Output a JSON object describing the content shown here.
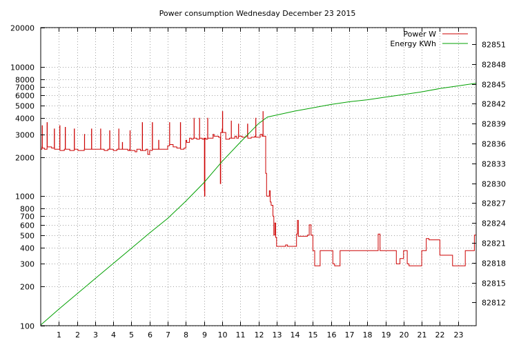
{
  "chart_data": {
    "type": "line",
    "title": "Power consumption Wednesday December 23 2015",
    "xlabel": "",
    "ylabel": "",
    "y2label": "",
    "xlim": [
      0,
      24
    ],
    "ylim": [
      100,
      20000
    ],
    "yscale": "log",
    "y2lim": [
      82808.5,
      82853.5
    ],
    "x_ticks": [
      1,
      2,
      3,
      4,
      5,
      6,
      7,
      8,
      9,
      10,
      11,
      12,
      13,
      14,
      15,
      16,
      17,
      18,
      19,
      20,
      21,
      22,
      23
    ],
    "y_ticks": [
      100,
      200,
      300,
      400,
      500,
      600,
      700,
      800,
      1000,
      2000,
      3000,
      4000,
      5000,
      6000,
      7000,
      8000,
      10000,
      20000
    ],
    "y2_ticks": [
      82812,
      82815,
      82818,
      82821,
      82824,
      82827,
      82830,
      82833,
      82836,
      82839,
      82842,
      82845,
      82848,
      82851
    ],
    "grid": true,
    "legend_position": "top-right",
    "series": [
      {
        "name": "Power W",
        "axis": "y",
        "color": "#cc0000",
        "points": [
          [
            0,
            2300
          ],
          [
            0.07,
            2400
          ],
          [
            0.08,
            3500
          ],
          [
            0.09,
            2350
          ],
          [
            0.2,
            2300
          ],
          [
            0.3,
            2300
          ],
          [
            0.35,
            3700
          ],
          [
            0.36,
            2400
          ],
          [
            0.6,
            2350
          ],
          [
            0.75,
            3300
          ],
          [
            0.76,
            2300
          ],
          [
            1.0,
            2300
          ],
          [
            1.05,
            3500
          ],
          [
            1.06,
            2250
          ],
          [
            1.3,
            2300
          ],
          [
            1.35,
            3400
          ],
          [
            1.36,
            2300
          ],
          [
            1.6,
            2250
          ],
          [
            1.8,
            2250
          ],
          [
            1.85,
            3300
          ],
          [
            1.86,
            2300
          ],
          [
            2.0,
            2300
          ],
          [
            2.05,
            2250
          ],
          [
            2.4,
            2300
          ],
          [
            2.41,
            3000
          ],
          [
            2.42,
            2300
          ],
          [
            2.7,
            2300
          ],
          [
            2.8,
            3300
          ],
          [
            2.81,
            2300
          ],
          [
            3.0,
            2300
          ],
          [
            3.2,
            2300
          ],
          [
            3.3,
            3300
          ],
          [
            3.31,
            2300
          ],
          [
            3.5,
            2250
          ],
          [
            3.7,
            2300
          ],
          [
            3.8,
            3200
          ],
          [
            3.81,
            2300
          ],
          [
            4.0,
            2250
          ],
          [
            4.2,
            2300
          ],
          [
            4.3,
            3300
          ],
          [
            4.31,
            2300
          ],
          [
            4.5,
            2600
          ],
          [
            4.51,
            2300
          ],
          [
            4.8,
            2250
          ],
          [
            4.9,
            2300
          ],
          [
            4.92,
            3200
          ],
          [
            4.93,
            2250
          ],
          [
            5.2,
            2200
          ],
          [
            5.3,
            2300
          ],
          [
            5.5,
            2250
          ],
          [
            5.6,
            3700
          ],
          [
            5.61,
            2250
          ],
          [
            5.8,
            2300
          ],
          [
            5.9,
            2100
          ],
          [
            6.0,
            2250
          ],
          [
            6.1,
            2250
          ],
          [
            6.15,
            3700
          ],
          [
            6.16,
            2300
          ],
          [
            6.4,
            2300
          ],
          [
            6.5,
            2700
          ],
          [
            6.51,
            2300
          ],
          [
            6.7,
            2300
          ],
          [
            6.9,
            2300
          ],
          [
            7.0,
            2450
          ],
          [
            7.1,
            3700
          ],
          [
            7.11,
            2500
          ],
          [
            7.3,
            2400
          ],
          [
            7.5,
            2350
          ],
          [
            7.7,
            3700
          ],
          [
            7.71,
            2300
          ],
          [
            7.9,
            2350
          ],
          [
            8.0,
            2700
          ],
          [
            8.05,
            2600
          ],
          [
            8.2,
            2800
          ],
          [
            8.3,
            2750
          ],
          [
            8.4,
            2800
          ],
          [
            8.45,
            4000
          ],
          [
            8.46,
            2800
          ],
          [
            8.6,
            2750
          ],
          [
            8.75,
            4000
          ],
          [
            8.76,
            2800
          ],
          [
            8.9,
            2750
          ],
          [
            9.0,
            2800
          ],
          [
            9.02,
            1100
          ],
          [
            9.03,
            1000
          ],
          [
            9.05,
            2800
          ],
          [
            9.1,
            2750
          ],
          [
            9.2,
            4000
          ],
          [
            9.21,
            2800
          ],
          [
            9.5,
            3000
          ],
          [
            9.55,
            2900
          ],
          [
            9.8,
            2850
          ],
          [
            9.9,
            1250
          ],
          [
            9.92,
            3100
          ],
          [
            10.0,
            3300
          ],
          [
            10.02,
            4500
          ],
          [
            10.03,
            3100
          ],
          [
            10.2,
            2750
          ],
          [
            10.4,
            2800
          ],
          [
            10.5,
            3800
          ],
          [
            10.51,
            2800
          ],
          [
            10.7,
            2900
          ],
          [
            10.8,
            2800
          ],
          [
            10.9,
            3600
          ],
          [
            10.91,
            2900
          ],
          [
            11.1,
            2850
          ],
          [
            11.3,
            2900
          ],
          [
            11.4,
            3600
          ],
          [
            11.41,
            2800
          ],
          [
            11.6,
            2850
          ],
          [
            11.8,
            2900
          ],
          [
            11.85,
            4000
          ],
          [
            11.86,
            2850
          ],
          [
            12.0,
            2850
          ],
          [
            12.1,
            3000
          ],
          [
            12.2,
            2900
          ],
          [
            12.25,
            4500
          ],
          [
            12.26,
            2900
          ],
          [
            12.35,
            2900
          ],
          [
            12.4,
            1500
          ],
          [
            12.45,
            1000
          ],
          [
            12.55,
            1000
          ],
          [
            12.6,
            1100
          ],
          [
            12.65,
            900
          ],
          [
            12.7,
            850
          ],
          [
            12.8,
            700
          ],
          [
            12.85,
            500
          ],
          [
            12.9,
            620
          ],
          [
            12.95,
            480
          ],
          [
            13.0,
            410
          ],
          [
            13.2,
            410
          ],
          [
            13.4,
            410
          ],
          [
            13.5,
            420
          ],
          [
            13.6,
            410
          ],
          [
            13.8,
            410
          ],
          [
            14.0,
            410
          ],
          [
            14.1,
            510
          ],
          [
            14.15,
            650
          ],
          [
            14.2,
            490
          ],
          [
            14.4,
            490
          ],
          [
            14.7,
            500
          ],
          [
            14.8,
            600
          ],
          [
            14.9,
            500
          ],
          [
            15.0,
            380
          ],
          [
            15.1,
            290
          ],
          [
            15.3,
            290
          ],
          [
            15.4,
            380
          ],
          [
            15.5,
            380
          ],
          [
            15.8,
            380
          ],
          [
            16.0,
            380
          ],
          [
            16.1,
            300
          ],
          [
            16.2,
            290
          ],
          [
            16.4,
            290
          ],
          [
            16.5,
            380
          ],
          [
            16.7,
            380
          ],
          [
            17.0,
            380
          ],
          [
            17.5,
            380
          ],
          [
            18.0,
            380
          ],
          [
            18.1,
            380
          ],
          [
            18.3,
            380
          ],
          [
            18.5,
            380
          ],
          [
            18.6,
            510
          ],
          [
            18.7,
            380
          ],
          [
            19.0,
            380
          ],
          [
            19.2,
            380
          ],
          [
            19.4,
            380
          ],
          [
            19.5,
            380
          ],
          [
            19.6,
            300
          ],
          [
            19.8,
            330
          ],
          [
            20.0,
            380
          ],
          [
            20.2,
            300
          ],
          [
            20.3,
            290
          ],
          [
            20.6,
            290
          ],
          [
            20.9,
            290
          ],
          [
            21.0,
            380
          ],
          [
            21.2,
            380
          ],
          [
            21.25,
            470
          ],
          [
            21.4,
            460
          ],
          [
            21.6,
            460
          ],
          [
            21.8,
            460
          ],
          [
            22.0,
            350
          ],
          [
            22.3,
            350
          ],
          [
            22.6,
            350
          ],
          [
            22.7,
            290
          ],
          [
            23.0,
            290
          ],
          [
            23.2,
            290
          ],
          [
            23.4,
            380
          ],
          [
            23.6,
            380
          ],
          [
            23.8,
            380
          ],
          [
            23.9,
            500
          ],
          [
            24.0,
            500
          ]
        ]
      },
      {
        "name": "Energy KWh",
        "axis": "y2",
        "color": "#00a000",
        "points": [
          [
            0,
            82808.6
          ],
          [
            1,
            82811.0
          ],
          [
            2,
            82813.3
          ],
          [
            3,
            82815.6
          ],
          [
            4,
            82817.9
          ],
          [
            5,
            82820.2
          ],
          [
            6,
            82822.5
          ],
          [
            7,
            82824.7
          ],
          [
            8,
            82827.3
          ],
          [
            9,
            82830.1
          ],
          [
            10,
            82833.3
          ],
          [
            11,
            82836.2
          ],
          [
            12,
            82839.0
          ],
          [
            12.5,
            82840.0
          ],
          [
            13,
            82840.3
          ],
          [
            14,
            82840.9
          ],
          [
            15,
            82841.4
          ],
          [
            16,
            82841.9
          ],
          [
            17,
            82842.3
          ],
          [
            18,
            82842.6
          ],
          [
            19,
            82843.0
          ],
          [
            20,
            82843.4
          ],
          [
            21,
            82843.8
          ],
          [
            22,
            82844.3
          ],
          [
            23,
            82844.7
          ],
          [
            24,
            82845.1
          ]
        ]
      }
    ]
  },
  "colors": {
    "power": "#cc0000",
    "energy": "#00a000",
    "grid": "#a0a0a0"
  }
}
